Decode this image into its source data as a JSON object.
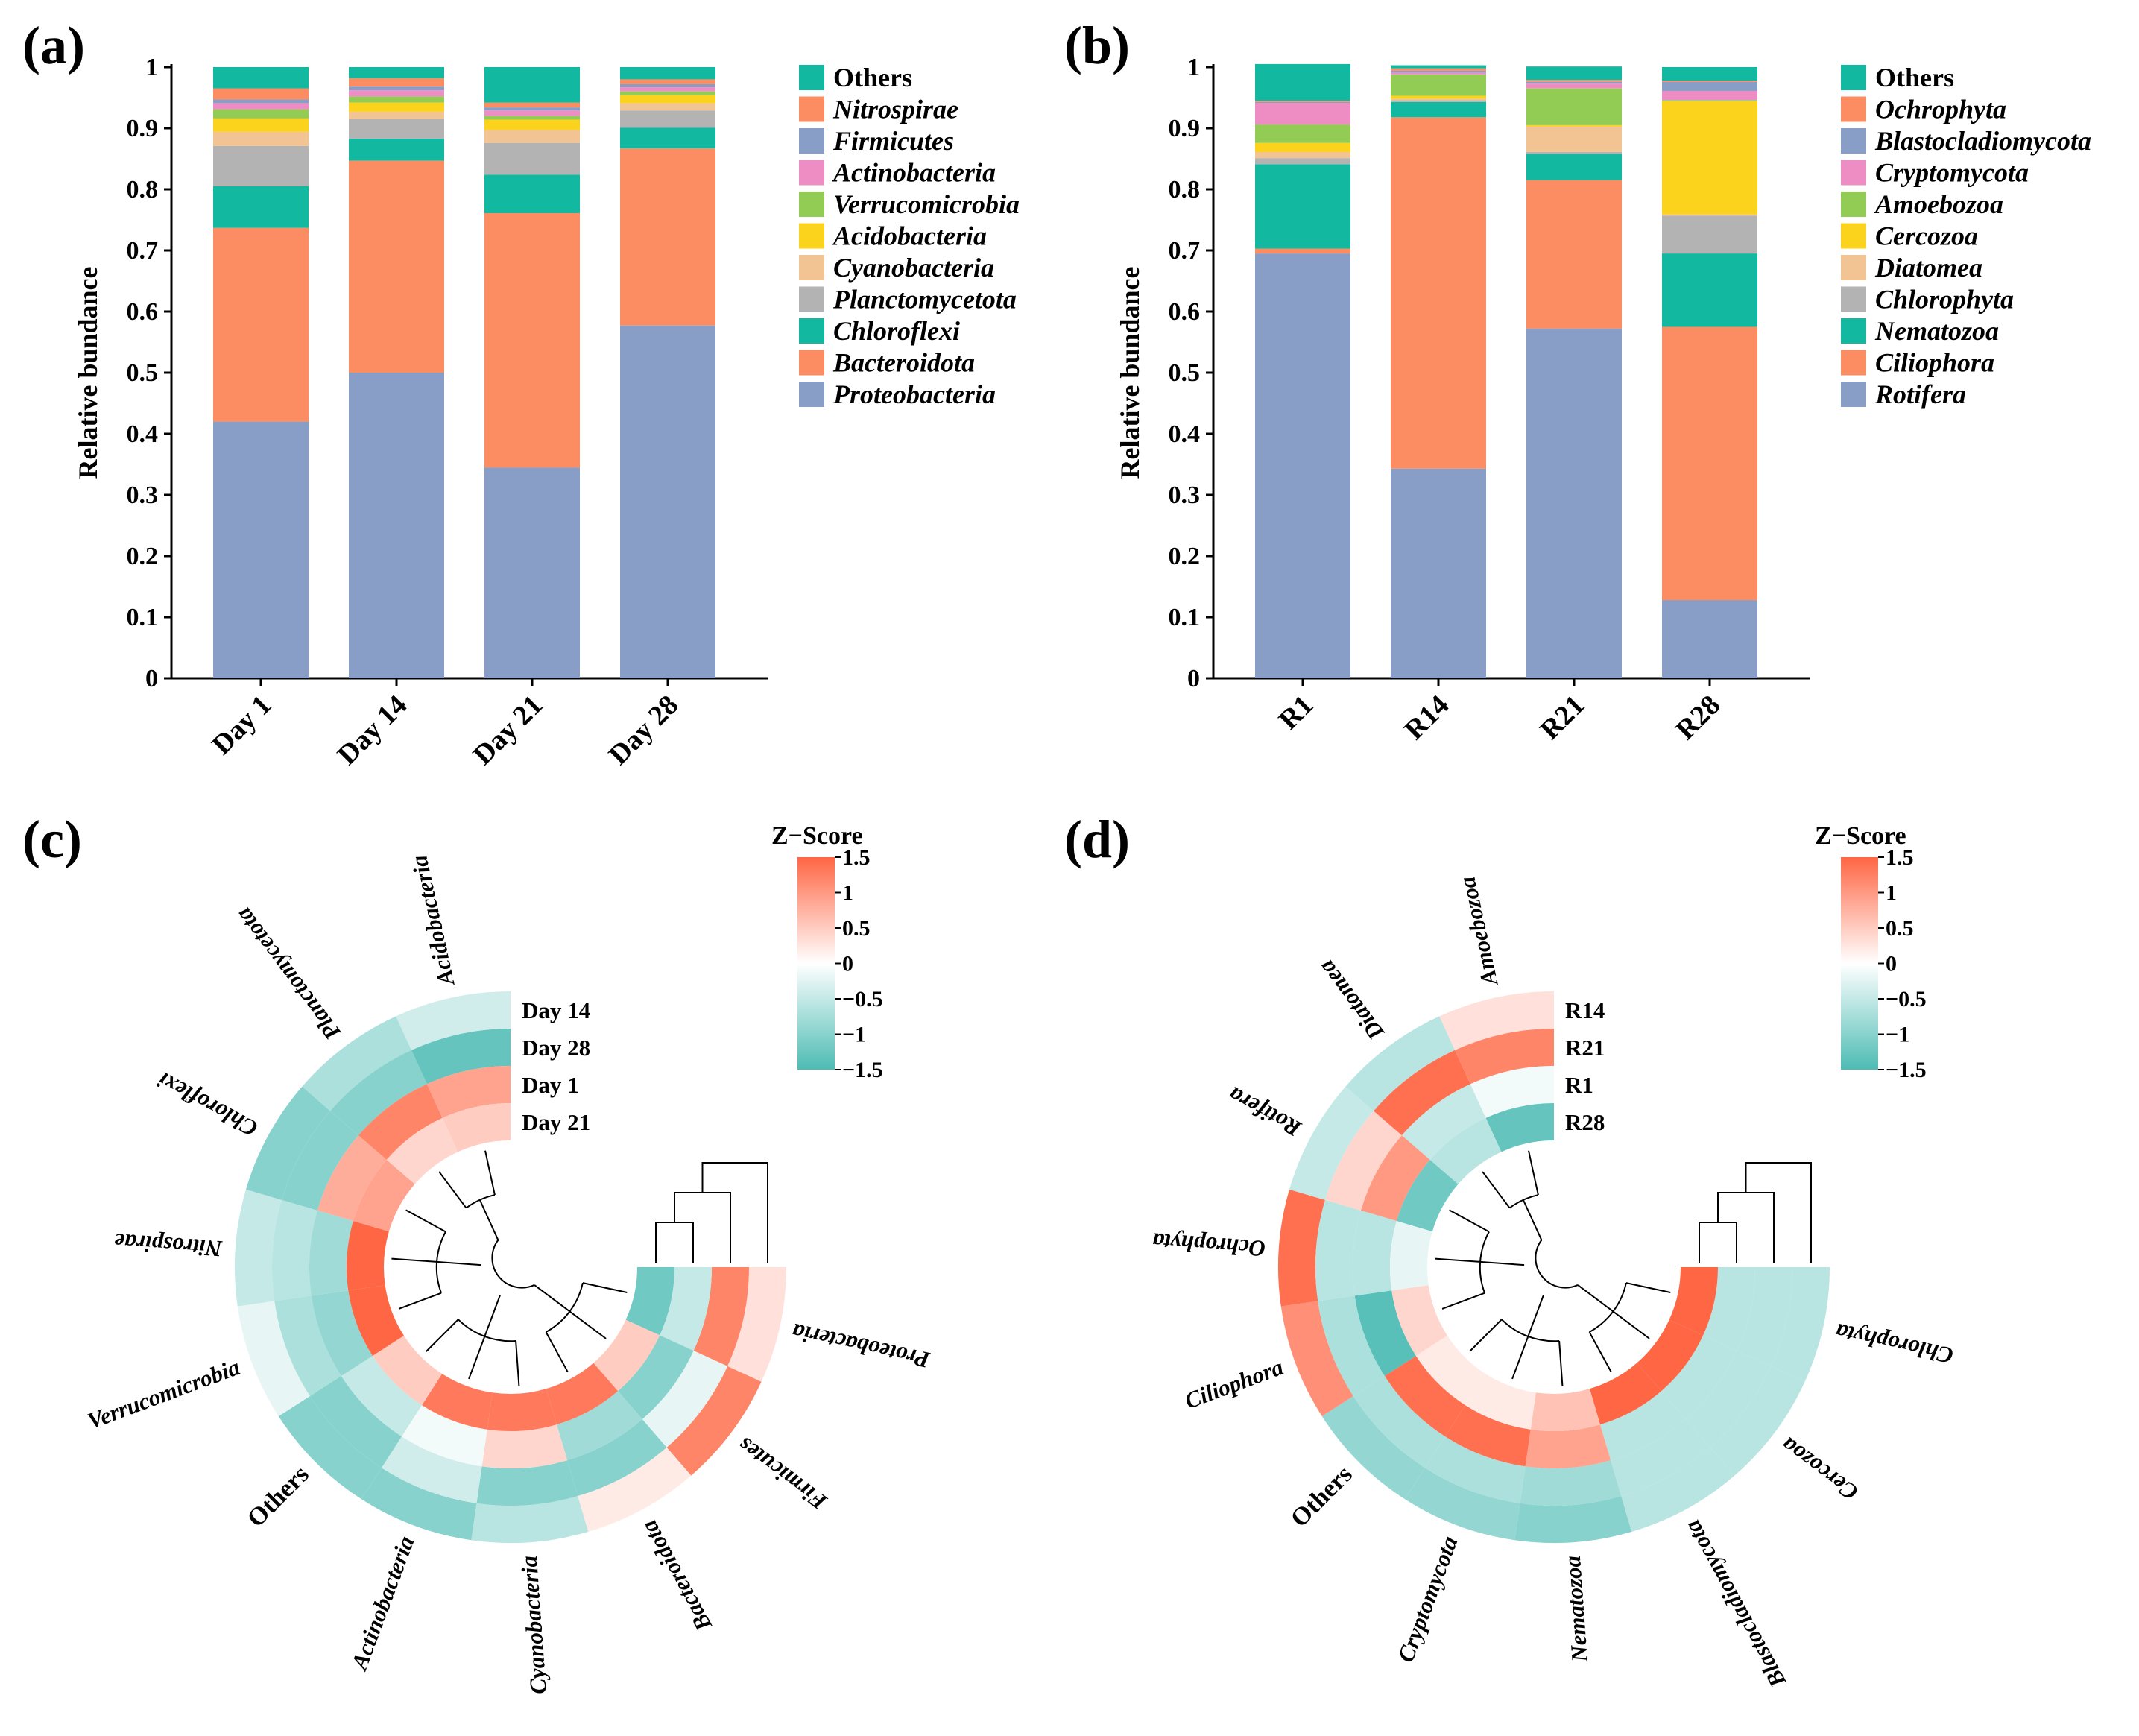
{
  "colors": {
    "blue": "#889ec7",
    "orange": "#fc8d62",
    "teal": "#12b8a0",
    "grey": "#b3b3b3",
    "peach": "#f2c494",
    "yellow": "#fcd31c",
    "green": "#92cc55",
    "pink": "#ee8dc3",
    "heat_low": "#4dbcb4",
    "heat_mid": "#ffffff",
    "heat_high": "#ff6644"
  },
  "chart_data": [
    {
      "panel": "(a)",
      "type": "bar",
      "stacked": true,
      "ylabel": "Relative bundance",
      "ylim": [
        0,
        1
      ],
      "yticks": [
        "0",
        "0.1",
        "0.2",
        "0.3",
        "0.4",
        "0.5",
        "0.6",
        "0.7",
        "0.8",
        "0.9",
        "1"
      ],
      "categories": [
        "Day 1",
        "Day 14",
        "Day 21",
        "Day 28"
      ],
      "legend_position": "right",
      "series": [
        {
          "name": "Proteobacteria",
          "color": "#889ec7",
          "italic": true,
          "values": [
            0.42,
            0.5,
            0.345,
            0.577
          ]
        },
        {
          "name": "Bacteroidota",
          "color": "#fc8d62",
          "italic": true,
          "values": [
            0.317,
            0.347,
            0.416,
            0.29
          ]
        },
        {
          "name": "Chloroflexi",
          "color": "#12b8a0",
          "italic": true,
          "values": [
            0.068,
            0.036,
            0.063,
            0.034
          ]
        },
        {
          "name": "Planctomycetota",
          "color": "#b3b3b3",
          "italic": true,
          "values": [
            0.066,
            0.032,
            0.052,
            0.028
          ]
        },
        {
          "name": "Cyanobacteria",
          "color": "#f2c494",
          "italic": true,
          "values": [
            0.023,
            0.012,
            0.021,
            0.012
          ]
        },
        {
          "name": "Acidobacteria",
          "color": "#fcd31c",
          "italic": true,
          "values": [
            0.022,
            0.015,
            0.017,
            0.013
          ]
        },
        {
          "name": "Verrucomicrobia",
          "color": "#92cc55",
          "italic": true,
          "values": [
            0.015,
            0.01,
            0.006,
            0.006
          ]
        },
        {
          "name": "Actinobacteria",
          "color": "#ee8dc3",
          "italic": true,
          "values": [
            0.01,
            0.01,
            0.009,
            0.007
          ]
        },
        {
          "name": "Firmicutes",
          "color": "#889ec7",
          "italic": true,
          "values": [
            0.006,
            0.006,
            0.005,
            0.005
          ]
        },
        {
          "name": "Nitrospirae",
          "color": "#fc8d62",
          "italic": true,
          "values": [
            0.018,
            0.014,
            0.008,
            0.008
          ]
        },
        {
          "name": "Others",
          "color": "#12b8a0",
          "italic": false,
          "values": [
            0.035,
            0.018,
            0.058,
            0.02
          ]
        }
      ]
    },
    {
      "panel": "(b)",
      "type": "bar",
      "stacked": true,
      "ylabel": "Relative bundance",
      "ylim": [
        0,
        1
      ],
      "yticks": [
        "0",
        "0.1",
        "0.2",
        "0.3",
        "0.4",
        "0.5",
        "0.6",
        "0.7",
        "0.8",
        "0.9",
        "1"
      ],
      "categories": [
        "R1",
        "R14",
        "R21",
        "R28"
      ],
      "legend_position": "right",
      "series": [
        {
          "name": "Rotifera",
          "color": "#889ec7",
          "italic": true,
          "values": [
            0.695,
            0.343,
            0.572,
            0.128
          ]
        },
        {
          "name": "Ciliophora",
          "color": "#fc8d62",
          "italic": true,
          "values": [
            0.008,
            0.575,
            0.243,
            0.447
          ]
        },
        {
          "name": "Nematozoa",
          "color": "#12b8a0",
          "italic": true,
          "values": [
            0.138,
            0.025,
            0.043,
            0.12
          ]
        },
        {
          "name": "Chlorophyta",
          "color": "#b3b3b3",
          "italic": true,
          "values": [
            0.01,
            0.003,
            0.003,
            0.062
          ]
        },
        {
          "name": "Diatomea",
          "color": "#f2c494",
          "italic": true,
          "values": [
            0.01,
            0.002,
            0.042,
            0.002
          ]
        },
        {
          "name": "Cercozoa",
          "color": "#fcd31c",
          "italic": true,
          "values": [
            0.015,
            0.005,
            0.002,
            0.185
          ]
        },
        {
          "name": "Amoebozoa",
          "color": "#92cc55",
          "italic": true,
          "values": [
            0.03,
            0.035,
            0.06,
            0.002
          ]
        },
        {
          "name": "Cryptomycota",
          "color": "#ee8dc3",
          "italic": true,
          "values": [
            0.035,
            0.003,
            0.008,
            0.015
          ]
        },
        {
          "name": "Blastocladiomycota",
          "color": "#889ec7",
          "italic": true,
          "values": [
            0.002,
            0.003,
            0.003,
            0.015
          ]
        },
        {
          "name": "Ochrophyta",
          "color": "#fc8d62",
          "italic": true,
          "values": [
            0.002,
            0.004,
            0.003,
            0.002
          ]
        },
        {
          "name": "Others",
          "color": "#12b8a0",
          "italic": false,
          "values": [
            0.06,
            0.005,
            0.022,
            0.022
          ]
        }
      ]
    },
    {
      "panel": "(c)",
      "type": "heatmap",
      "layout": "circular",
      "legend_title": "Z−Score",
      "scale_ticks": [
        "1.5",
        "1",
        "0.5",
        "0",
        "−0.5",
        "−1",
        "−1.5"
      ],
      "scale_range": [
        -1.5,
        1.5
      ],
      "rows": [
        "Day 14",
        "Day 28",
        "Day 1",
        "Day 21"
      ],
      "columns": [
        {
          "label": "Proteobacteria",
          "italic": true
        },
        {
          "label": "Firmicutes",
          "italic": true
        },
        {
          "label": "Bacteroidota",
          "italic": true
        },
        {
          "label": "Cyanobacteria",
          "italic": true
        },
        {
          "label": "Actinobacteria",
          "italic": true
        },
        {
          "label": "Others",
          "italic": false
        },
        {
          "label": "Verrucomicrobia",
          "italic": true
        },
        {
          "label": "Nitrospirae",
          "italic": true
        },
        {
          "label": "Chloroflexi",
          "italic": true
        },
        {
          "label": "Planctomycetota",
          "italic": true
        },
        {
          "label": "Acidobacteria",
          "italic": true
        }
      ],
      "values": [
        [
          0.3,
          1.2,
          0.2,
          -0.6,
          -1.0,
          -1.0,
          -0.2,
          -0.5,
          -1.0,
          -0.7,
          -0.4
        ],
        [
          1.2,
          -0.2,
          -1.0,
          -1.0,
          -0.4,
          -1.0,
          -0.7,
          -0.6,
          -1.0,
          -1.0,
          -1.3
        ],
        [
          -0.5,
          -1.0,
          -0.8,
          0.4,
          -0.1,
          -0.5,
          -0.9,
          -0.8,
          0.8,
          1.2,
          0.9
        ],
        [
          -1.2,
          0.5,
          1.3,
          1.3,
          1.3,
          0.5,
          1.5,
          1.5,
          0.9,
          0.4,
          0.5
        ]
      ]
    },
    {
      "panel": "(d)",
      "type": "heatmap",
      "layout": "circular",
      "legend_title": "Z−Score",
      "scale_ticks": [
        "1.5",
        "1",
        "0.5",
        "0",
        "−0.5",
        "−1",
        "−1.5"
      ],
      "scale_range": [
        -1.5,
        1.5
      ],
      "rows": [
        "R14",
        "R21",
        "R1",
        "R28"
      ],
      "columns": [
        {
          "label": "Chlorophyta",
          "italic": true
        },
        {
          "label": "Cercozoa",
          "italic": true
        },
        {
          "label": "Blastocladiomycota",
          "italic": true
        },
        {
          "label": "Nematozoa",
          "italic": true
        },
        {
          "label": "Cryptomycota",
          "italic": true
        },
        {
          "label": "Others",
          "italic": false
        },
        {
          "label": "Ciliophora",
          "italic": true
        },
        {
          "label": "Ochrophyta",
          "italic": true
        },
        {
          "label": "Rotifera",
          "italic": true
        },
        {
          "label": "Diatomea",
          "italic": true
        },
        {
          "label": "Amoebozoa",
          "italic": true
        }
      ],
      "values": [
        [
          -0.6,
          -0.6,
          -0.6,
          -1.0,
          -0.9,
          -0.9,
          1.1,
          1.4,
          -0.5,
          -0.6,
          0.3
        ],
        [
          -0.6,
          -0.6,
          -0.6,
          -0.8,
          -0.7,
          -0.7,
          -0.7,
          -0.6,
          0.4,
          1.4,
          1.2
        ],
        [
          -0.6,
          -0.6,
          -0.6,
          0.9,
          1.4,
          1.4,
          -1.4,
          -0.6,
          1.0,
          -0.5,
          -0.1
        ],
        [
          1.5,
          1.5,
          1.5,
          0.6,
          0.2,
          0.2,
          0.4,
          -0.2,
          -1.2,
          -0.6,
          -1.3
        ]
      ]
    }
  ]
}
